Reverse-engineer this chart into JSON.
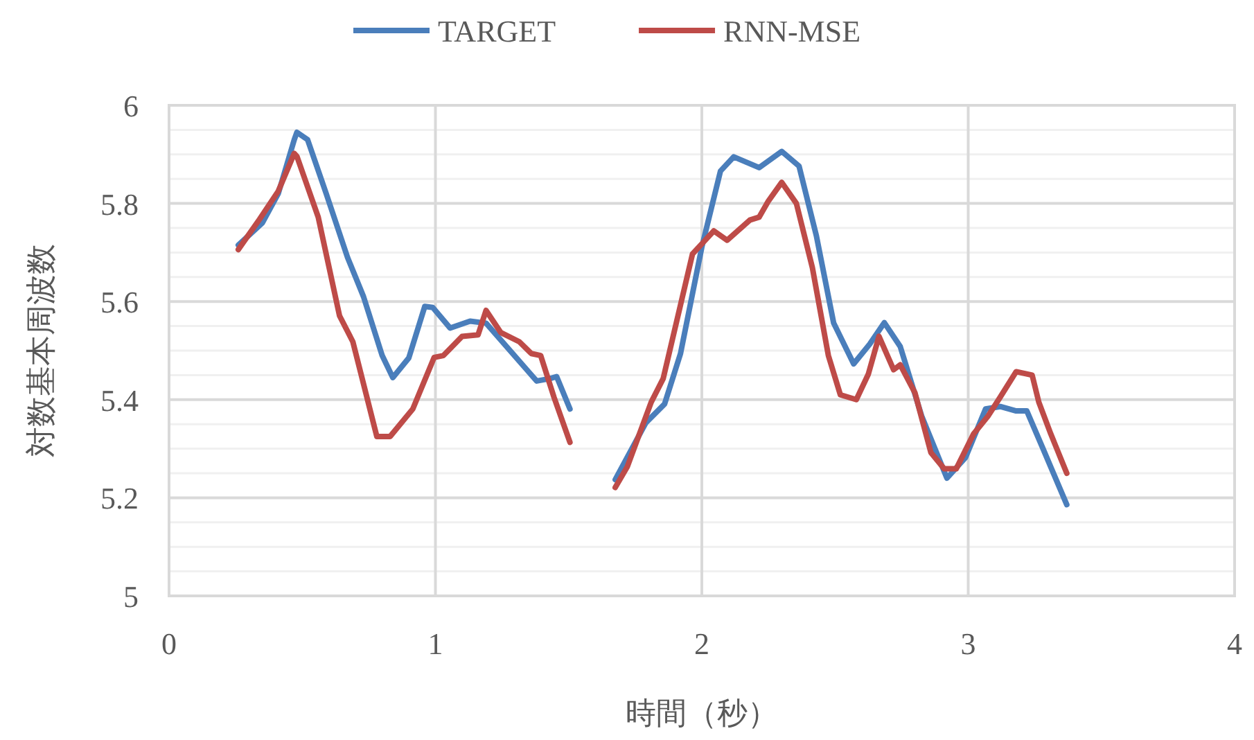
{
  "chart_data": {
    "type": "line",
    "xlabel": "時間（秒）",
    "ylabel": "対数基本周波数",
    "xlim": [
      0,
      4
    ],
    "xticks": [
      0,
      1,
      2,
      3,
      4
    ],
    "ylim": [
      5,
      6
    ],
    "yticks": [
      5,
      {
        "value": 5.05,
        "label": null
      },
      {
        "value": 5.1,
        "label": null
      },
      {
        "value": 5.15,
        "label": null
      },
      {
        "value": 5.2,
        "label": "5.2"
      },
      {
        "value": 5.25,
        "label": null
      },
      {
        "value": 5.3,
        "label": null
      },
      {
        "value": 5.35,
        "label": null
      },
      {
        "value": 5.4,
        "label": "5.4"
      },
      {
        "value": 5.45,
        "label": null
      },
      {
        "value": 5.5,
        "label": null
      },
      {
        "value": 5.55,
        "label": null
      },
      {
        "value": 5.6,
        "label": "5.6"
      },
      {
        "value": 5.65,
        "label": null
      },
      {
        "value": 5.7,
        "label": null
      },
      {
        "value": 5.75,
        "label": null
      },
      {
        "value": 5.8,
        "label": "5.8"
      },
      {
        "value": 5.85,
        "label": null
      },
      {
        "value": 5.9,
        "label": null
      },
      {
        "value": 5.95,
        "label": null
      },
      6
    ],
    "grid": true,
    "legend": "top",
    "line_style": "solid",
    "marker": "none",
    "series": [
      {
        "name": "TARGET",
        "color": "#4a7ebb",
        "x": [
          0.26,
          0.35,
          0.41,
          0.47,
          0.48,
          0.52,
          0.59,
          0.67,
          0.73,
          0.8,
          0.84,
          0.9,
          0.96,
          0.99,
          1.055,
          1.13,
          1.19,
          1.38,
          1.43,
          1.455,
          1.505
        ],
        "values": [
          5.715,
          5.76,
          5.82,
          5.93,
          5.945,
          5.93,
          5.82,
          5.69,
          5.61,
          5.49,
          5.445,
          5.485,
          5.59,
          5.588,
          5.546,
          5.56,
          5.556,
          5.438,
          5.443,
          5.447,
          5.381
        ]
      },
      {
        "name": "RNN-MSE",
        "color": "#be4b48",
        "x": [
          0.26,
          0.34,
          0.41,
          0.47,
          0.48,
          0.56,
          0.64,
          0.69,
          0.78,
          0.83,
          0.915,
          0.995,
          1.03,
          1.1,
          1.16,
          1.19,
          1.245,
          1.315,
          1.36,
          1.395,
          1.445,
          1.505
        ],
        "values": [
          5.706,
          5.768,
          5.825,
          5.902,
          5.896,
          5.772,
          5.571,
          5.518,
          5.325,
          5.325,
          5.381,
          5.486,
          5.49,
          5.529,
          5.532,
          5.582,
          5.537,
          5.518,
          5.494,
          5.49,
          5.405,
          5.313
        ]
      },
      {
        "color": "#4a7ebb",
        "x": [
          1.675,
          1.79,
          1.86,
          1.92,
          2.0,
          2.07,
          2.12,
          2.215,
          2.3,
          2.365,
          2.43,
          2.495,
          2.57,
          2.63,
          2.685,
          2.745,
          2.825,
          2.92,
          2.99,
          3.065,
          3.12,
          3.18,
          3.22,
          3.28,
          3.37
        ],
        "values": [
          5.237,
          5.353,
          5.391,
          5.494,
          5.711,
          5.866,
          5.895,
          5.873,
          5.906,
          5.876,
          5.734,
          5.556,
          5.473,
          5.513,
          5.557,
          5.508,
          5.367,
          5.24,
          5.282,
          5.381,
          5.386,
          5.377,
          5.377,
          5.301,
          5.186
        ]
      },
      {
        "color": "#be4b48",
        "x": [
          1.675,
          1.72,
          1.81,
          1.855,
          1.92,
          1.965,
          2.045,
          2.095,
          2.18,
          2.215,
          2.25,
          2.3,
          2.355,
          2.415,
          2.475,
          2.52,
          2.58,
          2.625,
          2.665,
          2.72,
          2.745,
          2.8,
          2.86,
          2.91,
          2.955,
          3.02,
          3.075,
          3.12,
          3.18,
          3.24,
          3.265,
          3.31,
          3.37
        ],
        "values": [
          5.221,
          5.263,
          5.395,
          5.443,
          5.593,
          5.697,
          5.744,
          5.725,
          5.766,
          5.772,
          5.805,
          5.843,
          5.8,
          5.669,
          5.49,
          5.41,
          5.4,
          5.452,
          5.529,
          5.461,
          5.471,
          5.414,
          5.292,
          5.259,
          5.259,
          5.33,
          5.367,
          5.405,
          5.457,
          5.45,
          5.395,
          5.33,
          5.25
        ]
      }
    ]
  }
}
